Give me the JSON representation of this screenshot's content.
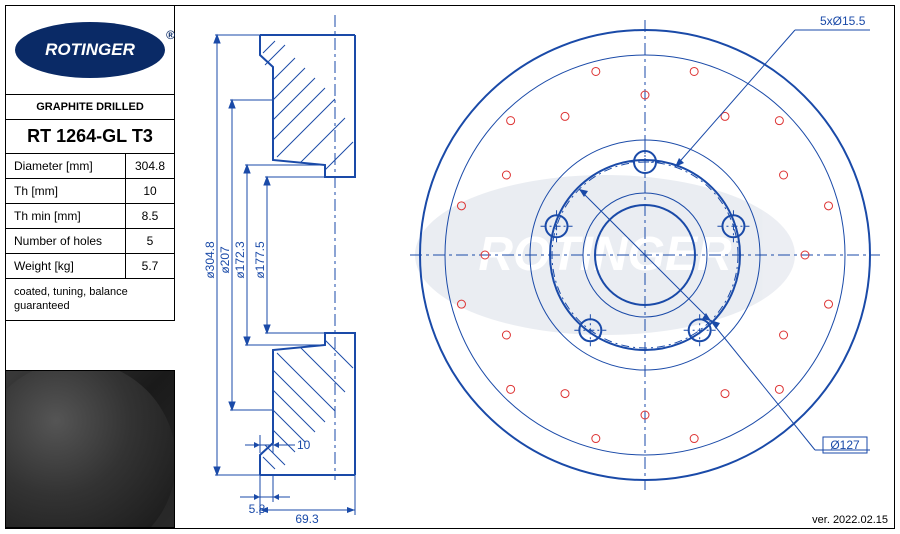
{
  "brand": "ROTINGER",
  "header": {
    "subtitle": "GRAPHITE DRILLED",
    "part_no": "RT 1264-GL T3"
  },
  "specs": [
    {
      "label": "Diameter [mm]",
      "value": "304.8"
    },
    {
      "label": "Th [mm]",
      "value": "10"
    },
    {
      "label": "Th min [mm]",
      "value": "8.5"
    },
    {
      "label": "Number of holes",
      "value": "5"
    },
    {
      "label": "Weight [kg]",
      "value": "5.7"
    }
  ],
  "footer_note": "coated, tuning, balance guaranteed",
  "version": "ver. 2022.02.15",
  "profile": {
    "dims_vertical": [
      "ø304.8",
      "ø207",
      "ø172.3",
      "ø177.5"
    ],
    "dim_thickness": "10",
    "dim_bottom_left": "5.8",
    "dim_bottom_right": "69.3"
  },
  "front": {
    "callout_top": "5xØ15.5",
    "callout_bottom": "Ø127",
    "outer_diameter": 304.8,
    "bolt_circle": 127,
    "bolt_hole_d": 15.5,
    "num_bolts": 5,
    "drill_rings": 2,
    "drill_per_ring": 12
  },
  "colors": {
    "line": "#1a4aa8",
    "accent": "#d33",
    "logo_bg": "#0a2a66"
  }
}
